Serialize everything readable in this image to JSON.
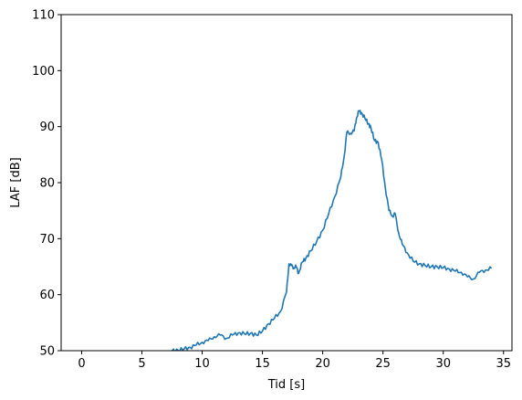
{
  "chart_data": {
    "type": "line",
    "title": "",
    "xlabel": "Tid [s]",
    "ylabel": "LAF [dB]",
    "xlim": [
      -1.7,
      35.7
    ],
    "ylim": [
      50,
      110
    ],
    "xticks": [
      0,
      5,
      10,
      15,
      20,
      25,
      30,
      35
    ],
    "yticks": [
      50,
      60,
      70,
      80,
      90,
      100,
      110
    ],
    "grid": false,
    "legend": "none",
    "color": "#1f77b4",
    "series": [
      {
        "x": [
          7.5,
          8.0,
          8.5,
          9.0,
          9.5,
          10.0,
          10.5,
          11.0,
          11.5,
          12.0,
          12.5,
          13.0,
          13.5,
          14.0,
          14.5,
          15.0,
          15.5,
          16.0,
          16.5,
          17.0,
          17.2,
          17.4,
          17.6,
          17.8,
          18.0,
          18.3,
          18.6,
          19.0,
          19.5,
          20.0,
          20.5,
          21.0,
          21.5,
          21.8,
          22.0,
          22.3,
          22.6,
          22.8,
          23.0,
          23.2,
          23.5,
          23.8,
          24.0,
          24.3,
          24.6,
          24.9,
          25.2,
          25.5,
          25.8,
          26.0,
          26.3,
          26.6,
          27.0,
          27.5,
          28.0,
          28.5,
          29.0,
          29.5,
          30.0,
          30.5,
          31.0,
          31.5,
          32.0,
          32.5,
          33.0,
          33.5,
          34.0
        ],
        "y": [
          50.0,
          50.1,
          50.3,
          50.6,
          51.0,
          51.5,
          51.8,
          52.5,
          52.8,
          52.2,
          52.8,
          53.2,
          53.0,
          53.1,
          52.8,
          53.5,
          54.8,
          55.8,
          57.0,
          60.5,
          65.5,
          65.2,
          64.8,
          65.0,
          63.8,
          65.8,
          66.5,
          67.8,
          69.5,
          71.5,
          74.5,
          77.5,
          81.0,
          85.0,
          89.0,
          88.8,
          89.2,
          91.5,
          92.8,
          92.5,
          91.5,
          90.5,
          89.8,
          87.5,
          87.2,
          84.0,
          79.0,
          75.0,
          74.0,
          74.5,
          71.0,
          69.0,
          67.5,
          66.0,
          65.5,
          65.2,
          65.0,
          65.0,
          64.8,
          64.6,
          64.2,
          64.0,
          63.2,
          62.8,
          64.0,
          64.4,
          64.7
        ]
      }
    ]
  }
}
